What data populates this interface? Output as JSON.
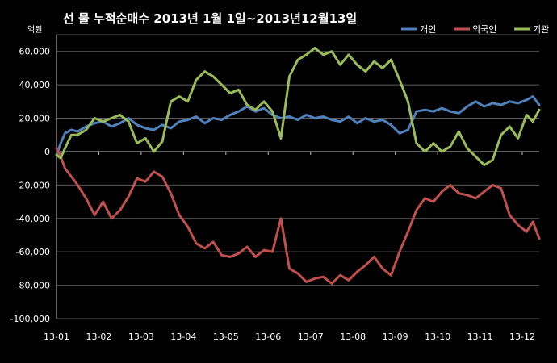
{
  "chart_data": {
    "type": "line",
    "title": "선 물 누적순매수 2013년 1월 1일~2013년12월13일",
    "unit_label": "억원",
    "ylim": [
      -100000,
      70000
    ],
    "yticks": [
      -100000,
      -80000,
      -60000,
      -40000,
      -20000,
      0,
      20000,
      40000,
      60000
    ],
    "ytick_labels": [
      "-100,000",
      "-80,000",
      "-60,000",
      "-40,000",
      "-20,000",
      "0",
      "20,000",
      "40,000",
      "60,000"
    ],
    "x_tick_labels": [
      "13-01",
      "13-02",
      "13-03",
      "13-04",
      "13-05",
      "13-06",
      "13-07",
      "13-08",
      "13-09",
      "13-10",
      "13-11",
      "13-12"
    ],
    "x_tick_positions": [
      0,
      1,
      2,
      3,
      4,
      5,
      6,
      7,
      8,
      9,
      10,
      11
    ],
    "x_range": [
      0,
      11.4
    ],
    "grid": true,
    "legend_placement": "top-right",
    "series": [
      {
        "name": "개인",
        "color": "#4f81bd",
        "x": [
          0,
          0.1,
          0.2,
          0.35,
          0.5,
          0.7,
          0.9,
          1.1,
          1.3,
          1.5,
          1.7,
          1.9,
          2.1,
          2.3,
          2.5,
          2.7,
          2.9,
          3.1,
          3.3,
          3.5,
          3.7,
          3.9,
          4.1,
          4.3,
          4.5,
          4.7,
          4.9,
          5.1,
          5.3,
          5.5,
          5.7,
          5.9,
          6.1,
          6.3,
          6.5,
          6.7,
          6.9,
          7.1,
          7.3,
          7.5,
          7.7,
          7.9,
          8.1,
          8.3,
          8.5,
          8.7,
          8.9,
          9.1,
          9.3,
          9.5,
          9.7,
          9.9,
          10.1,
          10.3,
          10.5,
          10.7,
          10.9,
          11.1,
          11.25,
          11.4
        ],
        "values": [
          -2000,
          5000,
          11000,
          13000,
          12000,
          15000,
          17000,
          18000,
          15000,
          17000,
          20000,
          16000,
          14000,
          13000,
          16000,
          14000,
          18000,
          19000,
          21000,
          17000,
          20000,
          19000,
          22000,
          24000,
          27000,
          24000,
          26000,
          22000,
          20000,
          21000,
          19000,
          22000,
          20000,
          21000,
          19000,
          18000,
          21000,
          17000,
          20000,
          18000,
          19000,
          16000,
          11000,
          13000,
          24000,
          25000,
          24000,
          26000,
          24000,
          23000,
          27000,
          30000,
          27000,
          29000,
          28000,
          30000,
          29000,
          31000,
          33000,
          28000
        ]
      },
      {
        "name": "외국인",
        "color": "#c0504d",
        "x": [
          0,
          0.1,
          0.2,
          0.35,
          0.5,
          0.7,
          0.9,
          1.1,
          1.3,
          1.5,
          1.7,
          1.9,
          2.1,
          2.3,
          2.5,
          2.7,
          2.9,
          3.1,
          3.3,
          3.5,
          3.7,
          3.9,
          4.1,
          4.3,
          4.5,
          4.7,
          4.9,
          5.1,
          5.3,
          5.5,
          5.7,
          5.9,
          6.1,
          6.3,
          6.5,
          6.7,
          6.9,
          7.1,
          7.3,
          7.5,
          7.7,
          7.9,
          8.1,
          8.3,
          8.5,
          8.7,
          8.9,
          9.1,
          9.3,
          9.5,
          9.7,
          9.9,
          10.1,
          10.3,
          10.5,
          10.7,
          10.9,
          11.1,
          11.25,
          11.4
        ],
        "values": [
          2000,
          -3000,
          -10000,
          -15000,
          -20000,
          -28000,
          -38000,
          -30000,
          -40000,
          -35000,
          -27000,
          -16000,
          -18000,
          -12000,
          -15000,
          -25000,
          -38000,
          -45000,
          -55000,
          -58000,
          -54000,
          -62000,
          -63000,
          -61000,
          -57000,
          -63000,
          -59000,
          -60000,
          -40000,
          -70000,
          -73000,
          -78000,
          -76000,
          -75000,
          -79000,
          -74000,
          -77000,
          -72000,
          -68000,
          -63000,
          -70000,
          -74000,
          -60000,
          -48000,
          -35000,
          -28000,
          -30000,
          -24000,
          -20000,
          -25000,
          -26000,
          -28000,
          -24000,
          -20000,
          -22000,
          -38000,
          -44000,
          -48000,
          -42000,
          -52000
        ]
      },
      {
        "name": "기관",
        "color": "#9bbb59",
        "x": [
          0,
          0.1,
          0.2,
          0.35,
          0.5,
          0.7,
          0.9,
          1.1,
          1.3,
          1.5,
          1.7,
          1.9,
          2.1,
          2.3,
          2.5,
          2.7,
          2.9,
          3.1,
          3.3,
          3.5,
          3.7,
          3.9,
          4.1,
          4.3,
          4.5,
          4.7,
          4.9,
          5.1,
          5.3,
          5.5,
          5.7,
          5.9,
          6.1,
          6.3,
          6.5,
          6.7,
          6.9,
          7.1,
          7.3,
          7.5,
          7.7,
          7.9,
          8.1,
          8.3,
          8.5,
          8.7,
          8.9,
          9.1,
          9.3,
          9.5,
          9.7,
          9.9,
          10.1,
          10.3,
          10.5,
          10.7,
          10.9,
          11.1,
          11.25,
          11.4
        ],
        "values": [
          -2000,
          -4000,
          2000,
          10000,
          10000,
          13000,
          20000,
          18000,
          20000,
          22000,
          18000,
          5000,
          8000,
          0,
          6000,
          30000,
          33000,
          30000,
          43000,
          48000,
          45000,
          40000,
          35000,
          37000,
          28000,
          25000,
          30000,
          24000,
          8000,
          45000,
          55000,
          58000,
          62000,
          58000,
          60000,
          52000,
          58000,
          52000,
          48000,
          54000,
          50000,
          55000,
          43000,
          30000,
          5000,
          0,
          5000,
          0,
          3000,
          12000,
          2000,
          -3000,
          -8000,
          -5000,
          10000,
          15000,
          8000,
          22000,
          18000,
          25000
        ]
      }
    ]
  }
}
